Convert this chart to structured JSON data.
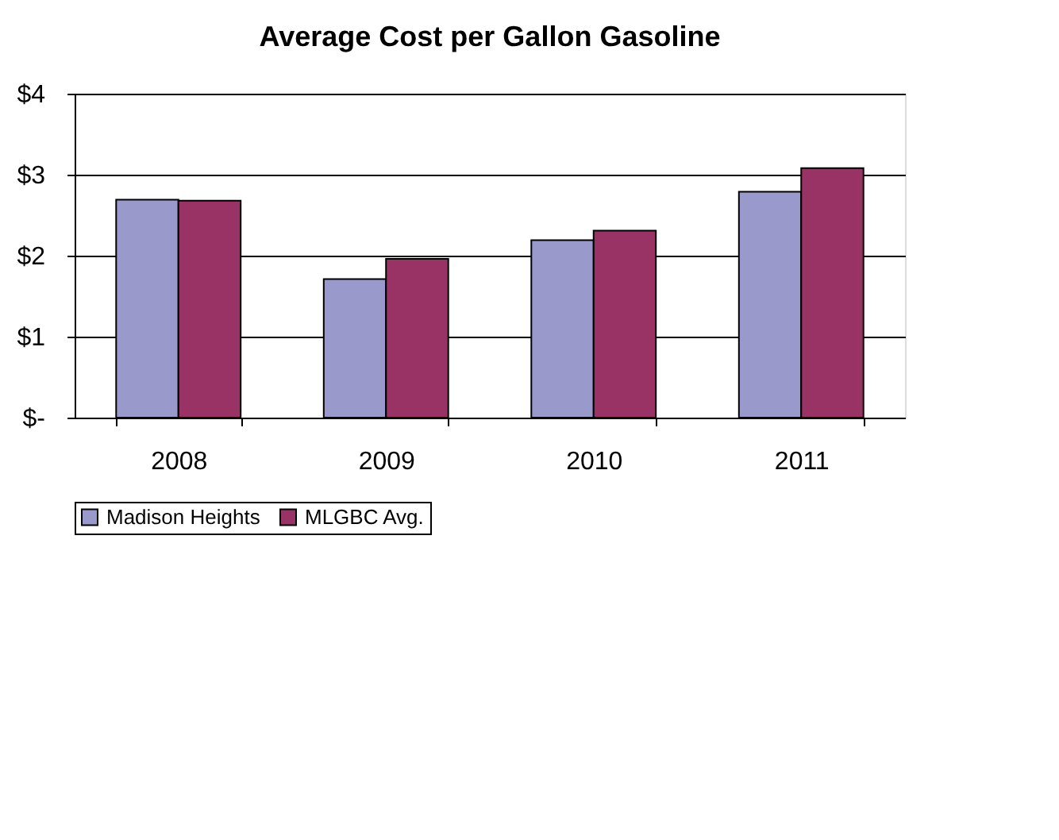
{
  "chart_data": {
    "type": "bar",
    "title": "Average Cost per Gallon Gasoline",
    "categories": [
      "2008",
      "2009",
      "2010",
      "2011"
    ],
    "series": [
      {
        "name": "Madison Heights",
        "color": "#9999cc",
        "values": [
          2.69,
          1.71,
          2.19,
          2.79
        ]
      },
      {
        "name": "MLGBC Avg.",
        "color": "#993366",
        "values": [
          2.68,
          1.96,
          2.31,
          3.08
        ]
      }
    ],
    "ylim": [
      0,
      4
    ],
    "yticks": [
      {
        "value": 0,
        "label": "$-"
      },
      {
        "value": 1,
        "label": "$1"
      },
      {
        "value": 2,
        "label": "$2"
      },
      {
        "value": 3,
        "label": "$3"
      },
      {
        "value": 4,
        "label": "$4"
      }
    ],
    "grid": "y",
    "legend": "bottom"
  }
}
